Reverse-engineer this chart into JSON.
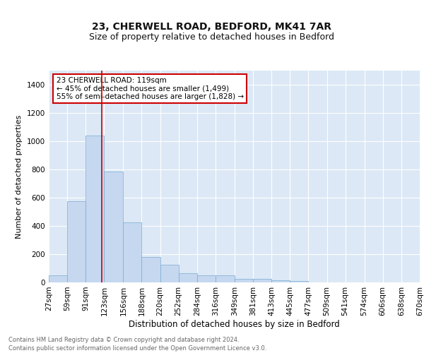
{
  "title1": "23, CHERWELL ROAD, BEDFORD, MK41 7AR",
  "title2": "Size of property relative to detached houses in Bedford",
  "xlabel": "Distribution of detached houses by size in Bedford",
  "ylabel": "Number of detached properties",
  "bar_color": "#c5d8f0",
  "bar_edge_color": "#7aaad0",
  "background_color": "#dce8f5",
  "grid_color": "#ffffff",
  "red_line_x": 119,
  "annotation_text": "23 CHERWELL ROAD: 119sqm\n← 45% of detached houses are smaller (1,499)\n55% of semi-detached houses are larger (1,828) →",
  "annotation_box_color": "#ffffff",
  "annotation_box_edge": "#cc0000",
  "bin_edges": [
    27,
    59,
    91,
    123,
    156,
    188,
    220,
    252,
    284,
    316,
    349,
    381,
    413,
    445,
    477,
    509,
    541,
    574,
    606,
    638,
    670
  ],
  "bar_heights": [
    50,
    575,
    1040,
    785,
    425,
    180,
    125,
    65,
    50,
    50,
    25,
    25,
    15,
    10,
    0,
    0,
    0,
    0,
    0,
    0
  ],
  "footnote": "Contains HM Land Registry data © Crown copyright and database right 2024.\nContains public sector information licensed under the Open Government Licence v3.0.",
  "ylim": [
    0,
    1500
  ],
  "yticks": [
    0,
    200,
    400,
    600,
    800,
    1000,
    1200,
    1400
  ],
  "title1_fontsize": 10,
  "title2_fontsize": 9,
  "xlabel_fontsize": 8.5,
  "ylabel_fontsize": 8,
  "tick_fontsize": 7.5,
  "annot_fontsize": 7.5,
  "footnote_fontsize": 6
}
